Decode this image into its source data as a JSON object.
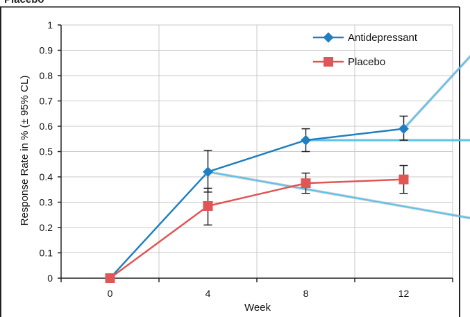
{
  "header": {
    "title": "Placebo"
  },
  "chart_data": {
    "type": "line",
    "xlabel": "Week",
    "ylabel": "Response Rate in % (± 95% CL)",
    "x": [
      0,
      4,
      8,
      12
    ],
    "xticks": [
      "0",
      "4",
      "8",
      "12"
    ],
    "xlim": [
      -2,
      14
    ],
    "ylim": [
      0,
      1
    ],
    "yticks": [
      "0",
      "0.1",
      "0.2",
      "0.3",
      "0.4",
      "0.5",
      "0.6",
      "0.7",
      "0.8",
      "0.9",
      "1"
    ],
    "grid": true,
    "legend": "top-right",
    "series": [
      {
        "name": "Antidepressant",
        "color": "#1f7fc0",
        "marker": "diamond",
        "values": [
          0,
          0.42,
          0.545,
          0.59
        ],
        "err_low": [
          null,
          0.34,
          0.5,
          0.545
        ],
        "err_high": [
          null,
          0.505,
          0.59,
          0.64
        ]
      },
      {
        "name": "Placebo",
        "color": "#e05555",
        "marker": "square",
        "values": [
          0,
          0.285,
          0.375,
          0.39
        ],
        "err_low": [
          null,
          0.21,
          0.335,
          0.335
        ],
        "err_high": [
          null,
          0.355,
          0.415,
          0.445
        ]
      }
    ],
    "annotation_lines_color": "#5bc3ea"
  }
}
